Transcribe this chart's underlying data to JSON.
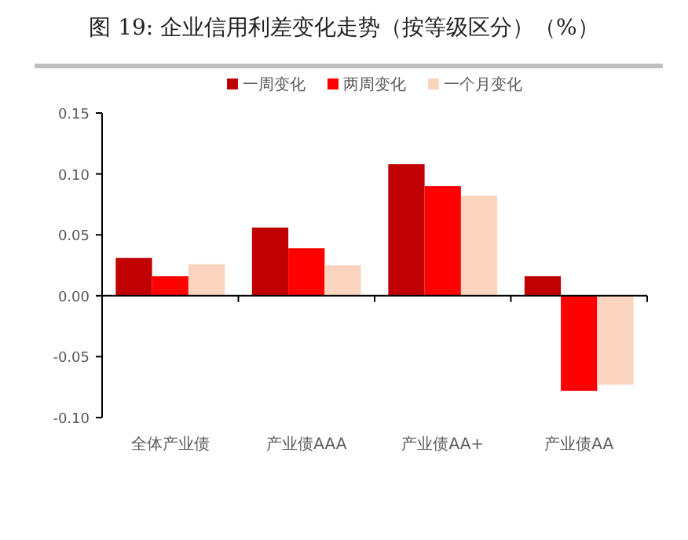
{
  "chart_data": {
    "type": "bar",
    "title": "图 19:    企业信用利差变化走势（按等级区分）（%）",
    "categories": [
      "全体产业债",
      "产业债AAA",
      "产业债AA+",
      "产业债AA"
    ],
    "series": [
      {
        "name": "一周变化",
        "color": "#c00000",
        "values": [
          0.031,
          0.056,
          0.108,
          0.016
        ]
      },
      {
        "name": "两周变化",
        "color": "#ff0000",
        "values": [
          0.016,
          0.039,
          0.09,
          -0.078
        ]
      },
      {
        "name": "一个月变化",
        "color": "#fbd4c0",
        "values": [
          0.026,
          0.025,
          0.082,
          -0.073
        ]
      }
    ],
    "ylim": [
      -0.1,
      0.15
    ],
    "yticks": [
      {
        "value": -0.1,
        "label": "-0.10"
      },
      {
        "value": -0.05,
        "label": "-0.05"
      },
      {
        "value": 0,
        "label": "0.00"
      },
      {
        "value": 0.05,
        "label": "0.05"
      },
      {
        "value": 0.1,
        "label": "0.10"
      },
      {
        "value": 0.15,
        "label": "0.15"
      }
    ],
    "legend": "top"
  }
}
